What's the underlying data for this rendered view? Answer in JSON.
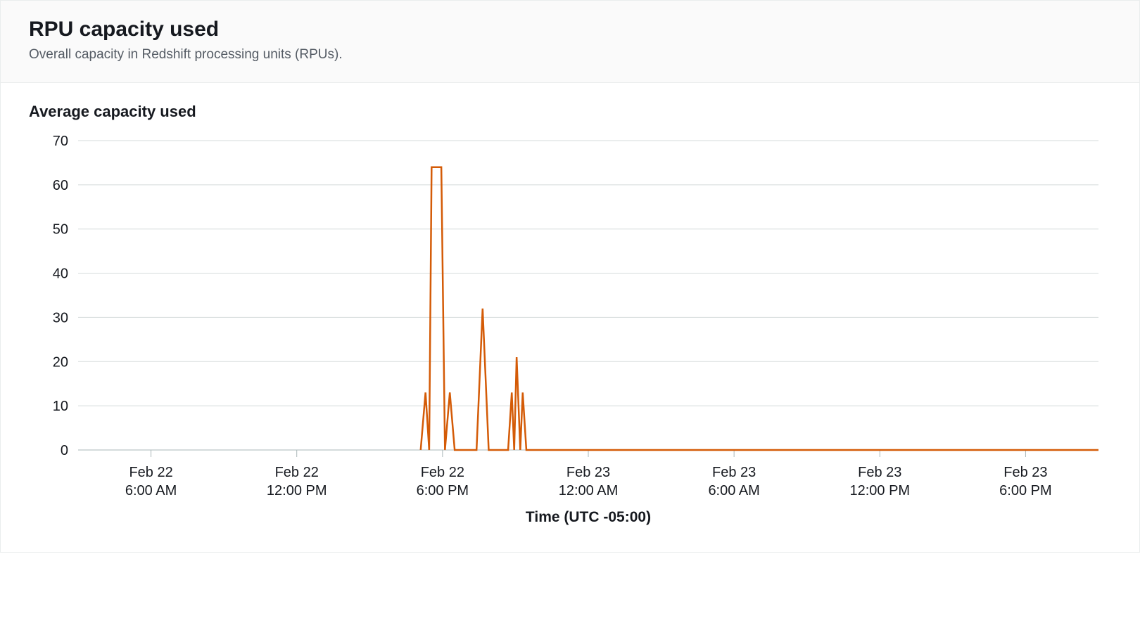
{
  "header": {
    "title": "RPU capacity used",
    "subtitle": "Overall capacity in Redshift processing units (RPUs)."
  },
  "chart": {
    "title": "Average capacity used",
    "type": "line",
    "x_axis_title": "Time (UTC -05:00)",
    "line_color": "#d45b07",
    "grid_color": "#d5dbdb",
    "axis_color": "#aab7b8",
    "background_color": "#ffffff",
    "line_width": 2.5,
    "ylim": [
      0,
      70
    ],
    "ytick_step": 10,
    "y_ticks": [
      0,
      10,
      20,
      30,
      40,
      50,
      60,
      70
    ],
    "x_range_hours": [
      0,
      42
    ],
    "x_ticks": [
      {
        "h": 3,
        "line1": "Feb 22",
        "line2": "6:00 AM"
      },
      {
        "h": 9,
        "line1": "Feb 22",
        "line2": "12:00 PM"
      },
      {
        "h": 15,
        "line1": "Feb 22",
        "line2": "6:00 PM"
      },
      {
        "h": 21,
        "line1": "Feb 23",
        "line2": "12:00 AM"
      },
      {
        "h": 27,
        "line1": "Feb 23",
        "line2": "6:00 AM"
      },
      {
        "h": 33,
        "line1": "Feb 23",
        "line2": "12:00 PM"
      },
      {
        "h": 39,
        "line1": "Feb 23",
        "line2": "6:00 PM"
      }
    ],
    "data_start_h": 14.1,
    "series": [
      {
        "h": 14.1,
        "v": 0
      },
      {
        "h": 14.3,
        "v": 13
      },
      {
        "h": 14.45,
        "v": 0
      },
      {
        "h": 14.55,
        "v": 64
      },
      {
        "h": 14.95,
        "v": 64
      },
      {
        "h": 15.1,
        "v": 0
      },
      {
        "h": 15.3,
        "v": 13
      },
      {
        "h": 15.5,
        "v": 0
      },
      {
        "h": 16.4,
        "v": 0
      },
      {
        "h": 16.65,
        "v": 32
      },
      {
        "h": 16.9,
        "v": 0
      },
      {
        "h": 17.7,
        "v": 0
      },
      {
        "h": 17.85,
        "v": 13
      },
      {
        "h": 17.95,
        "v": 0
      },
      {
        "h": 18.05,
        "v": 21
      },
      {
        "h": 18.2,
        "v": 0
      },
      {
        "h": 18.3,
        "v": 13
      },
      {
        "h": 18.45,
        "v": 0
      },
      {
        "h": 42.0,
        "v": 0
      }
    ],
    "title_fontsize": 22,
    "label_fontsize": 20,
    "axis_title_fontsize": 21
  }
}
